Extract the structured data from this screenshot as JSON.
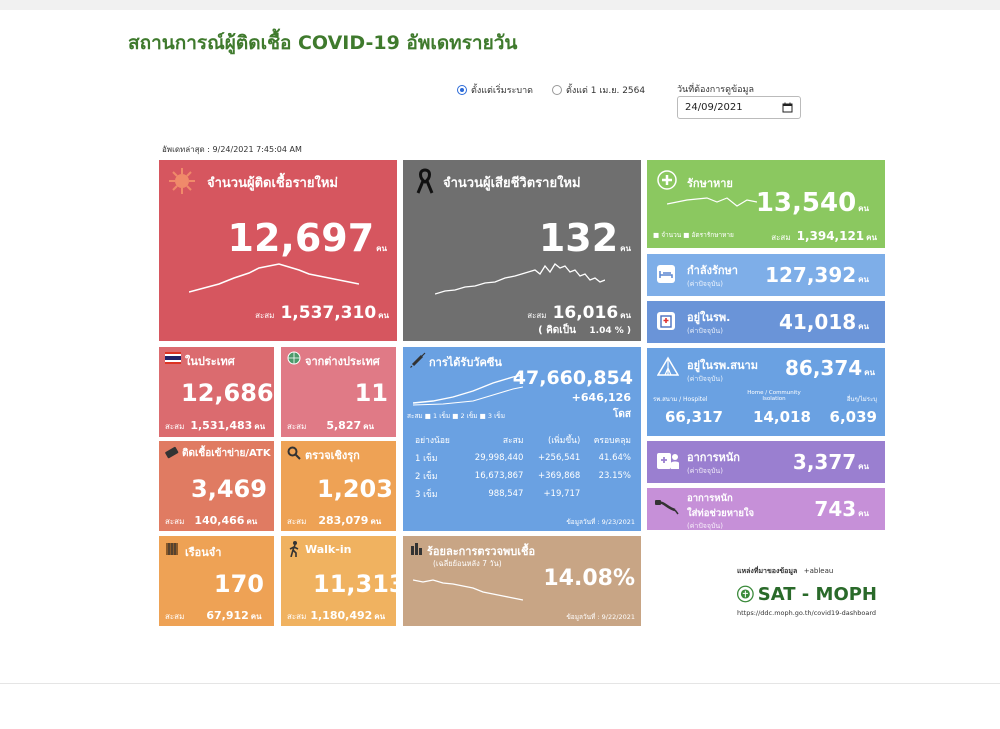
{
  "page": {
    "title": "สถานการณ์ผู้ติดเชื้อ COVID-19 อัพเดทรายวัน",
    "radio_since_start": "ตั้งแต่เริ่มระบาด",
    "radio_since_april": "ตั้งแต่ 1 เม.ย. 2564",
    "date_label": "วันที่ต้องการดูข้อมูล",
    "date_value": "24/09/2021",
    "last_update": "อัพเดทล่าสุด : 9/24/2021 7:45:04 AM"
  },
  "unit": "คน",
  "cum_label": "สะสม",
  "new_cases": {
    "label": "จำนวนผู้ติดเชื้อรายใหม่",
    "value": "12,697",
    "cumulative": "1,537,310"
  },
  "deaths": {
    "label": "จำนวนผู้เสียชีวิตรายใหม่",
    "value": "132",
    "cumulative": "16,016",
    "pct_label": "( คิดเป็น",
    "pct": "1.04 % )"
  },
  "domestic": {
    "label": "ในประเทศ",
    "value": "12,686",
    "cumulative": "1,531,483"
  },
  "imported": {
    "label": "จากต่างประเทศ",
    "value": "11",
    "cumulative": "5,827"
  },
  "atk": {
    "label": "ติดเชื้อเข้าข่าย/ATK",
    "value": "3,469",
    "cumulative": "140,466"
  },
  "proactive": {
    "label": "ตรวจเชิงรุก",
    "value": "1,203",
    "cumulative": "283,079"
  },
  "prison": {
    "label": "เรือนจำ",
    "value": "170",
    "cumulative": "67,912"
  },
  "walkin": {
    "label": "Walk-in",
    "value": "11,313",
    "cumulative": "1,180,492"
  },
  "vaccine": {
    "label": "การได้รับวัคซีน",
    "total": "47,660,854",
    "daily": "+646,126",
    "daily_unit": "โดส",
    "legend": [
      "1 เข็ม",
      "2 เข็ม",
      "3 เข็ม"
    ],
    "legend_prefix": "สะสม",
    "headers": [
      "อย่างน้อย",
      "สะสม",
      "(เพิ่มขึ้น)",
      "ครอบคลุม"
    ],
    "rows": [
      {
        "dose": "1 เข็ม",
        "cum": "29,998,440",
        "inc": "+256,541",
        "cov": "41.64%"
      },
      {
        "dose": "2 เข็ม",
        "cum": "16,673,867",
        "inc": "+369,868",
        "cov": "23.15%"
      },
      {
        "dose": "3 เข็ม",
        "cum": "988,547",
        "inc": "+19,717",
        "cov": ""
      }
    ],
    "data_date": "ข้อมูลวันที่ : 9/23/2021"
  },
  "positivity": {
    "label": "ร้อยละการตรวจพบเชื้อ",
    "sub": "(เฉลี่ยย้อนหลัง 7 วัน)",
    "value": "14.08%",
    "data_date": "ข้อมูลวันที่ : 9/22/2021"
  },
  "recovered": {
    "label": "รักษาหาย",
    "value": "13,540",
    "cumulative": "1,394,121",
    "legend": [
      "จำนวน",
      "อัตรารักษาหาย"
    ]
  },
  "treating": {
    "label": "กำลังรักษา",
    "sub": "(ค่าปัจจุบัน)",
    "value": "127,392"
  },
  "hospital": {
    "label": "อยู่ในรพ.",
    "sub": "(ค่าปัจจุบัน)",
    "value": "41,018"
  },
  "field_hospital": {
    "label": "อยู่ในรพ.สนาม",
    "sub": "(ค่าปัจจุบัน)",
    "value": "86,374",
    "cols": [
      {
        "label": "รพ.สนาม / Hospitel",
        "value": "66,317"
      },
      {
        "label": "Home / Community Isolation",
        "value": "14,018"
      },
      {
        "label": "อื่นๆ/ไม่ระบุ",
        "value": "6,039"
      }
    ]
  },
  "severe": {
    "label": "อาการหนัก",
    "sub": "(ค่าปัจจุบัน)",
    "value": "3,377"
  },
  "ventilator": {
    "label": "อาการหนัก",
    "label2": "ใส่ท่อช่วยหายใจ",
    "sub": "(ค่าปัจจุบัน)",
    "value": "743"
  },
  "source": {
    "label": "แหล่งที่มาของข้อมูล",
    "tableau": "+ableau",
    "org": "SAT - MOPH",
    "url": "https://ddc.moph.go.th/covid19-dashboard"
  },
  "colors": {
    "title_green": "#3f7a2d",
    "cases_red": "#d6565f",
    "deaths_gray": "#6f6f6f",
    "recovered_green": "#8bc860"
  },
  "icons": [
    "virus-icon",
    "black-ribbon-icon",
    "thai-flag-icon",
    "globe-icon",
    "syringe-icon",
    "test-kit-icon",
    "magnifier-icon",
    "prison-icon",
    "walking-icon",
    "test-tube-icon",
    "plus-cross-icon",
    "bed-icon",
    "hospital-icon",
    "tent-icon",
    "doctor-icon",
    "ventilator-icon",
    "moph-logo"
  ]
}
